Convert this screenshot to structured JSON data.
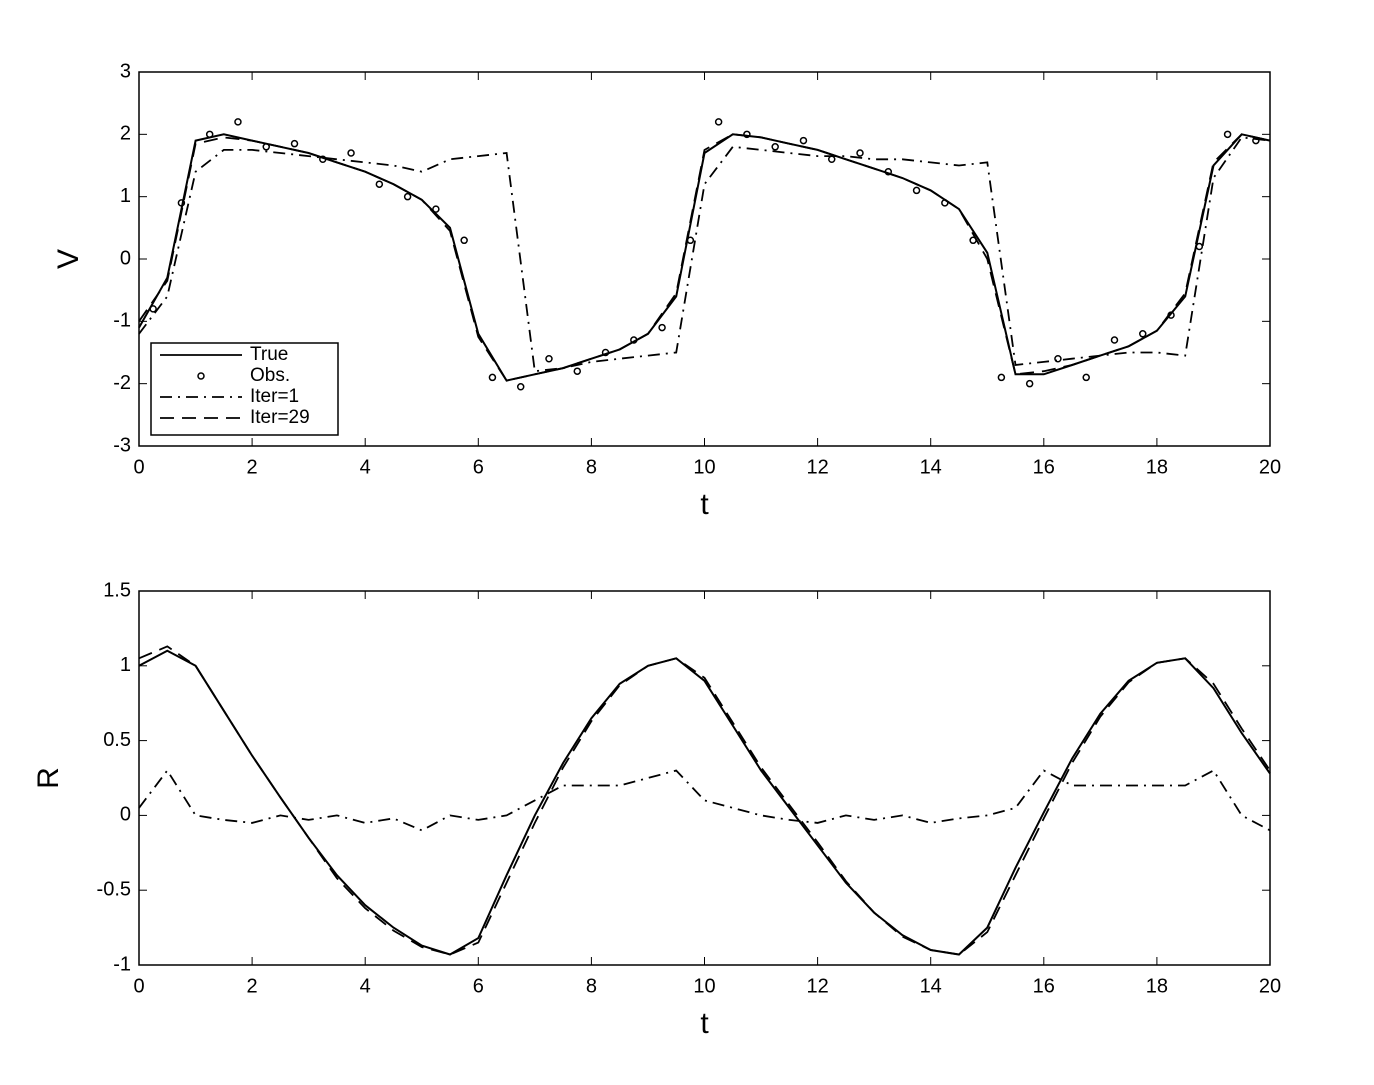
{
  "chart_data": [
    {
      "type": "line",
      "xlabel": "t",
      "ylabel": "V",
      "xlim": [
        0,
        20
      ],
      "ylim": [
        -3,
        3
      ],
      "xticks": [
        0,
        2,
        4,
        6,
        8,
        10,
        12,
        14,
        16,
        18,
        20
      ],
      "yticks": [
        -3,
        -2,
        -1,
        0,
        1,
        2,
        3
      ],
      "legend": "lower left",
      "x": [
        0,
        0.5,
        1,
        1.5,
        2,
        2.5,
        3,
        3.5,
        4,
        4.5,
        5,
        5.5,
        6,
        6.5,
        7,
        7.5,
        8,
        8.5,
        9,
        9.5,
        10,
        10.5,
        11,
        11.5,
        12,
        12.5,
        13,
        13.5,
        14,
        14.5,
        15,
        15.5,
        16,
        16.5,
        17,
        17.5,
        18,
        18.5,
        19,
        19.5,
        20
      ],
      "series": [
        {
          "name": "True",
          "color": "#000000",
          "style": "solid",
          "values": [
            -1.1,
            -0.3,
            1.9,
            2.0,
            1.9,
            1.8,
            1.7,
            1.55,
            1.4,
            1.2,
            0.95,
            0.5,
            -1.2,
            -1.95,
            -1.85,
            -1.75,
            -1.6,
            -1.45,
            -1.2,
            -0.6,
            1.7,
            2.0,
            1.95,
            1.85,
            1.75,
            1.6,
            1.45,
            1.3,
            1.1,
            0.8,
            0.1,
            -1.85,
            -1.85,
            -1.7,
            -1.55,
            -1.4,
            -1.15,
            -0.6,
            1.5,
            2.0,
            1.9
          ]
        },
        {
          "name": "Obs.",
          "color": "#000000",
          "style": "markers",
          "x": [
            0.25,
            0.75,
            1.25,
            1.75,
            2.25,
            2.75,
            3.25,
            3.75,
            4.25,
            4.75,
            5.25,
            5.75,
            6.25,
            6.75,
            7.25,
            7.75,
            8.25,
            8.75,
            9.25,
            9.75,
            10.25,
            10.75,
            11.25,
            11.75,
            12.25,
            12.75,
            13.25,
            13.75,
            14.25,
            14.75,
            15.25,
            15.75,
            16.25,
            16.75,
            17.25,
            17.75,
            18.25,
            18.75,
            19.25,
            19.75
          ],
          "values": [
            -0.8,
            0.9,
            2.0,
            2.2,
            1.8,
            1.85,
            1.6,
            1.7,
            1.2,
            1.0,
            0.8,
            0.3,
            -1.9,
            -2.05,
            -1.6,
            -1.8,
            -1.5,
            -1.3,
            -1.1,
            0.3,
            2.2,
            2.0,
            1.8,
            1.9,
            1.6,
            1.7,
            1.4,
            1.1,
            0.9,
            0.3,
            -1.9,
            -2.0,
            -1.6,
            -1.9,
            -1.3,
            -1.2,
            -0.9,
            0.2,
            2.0,
            1.9
          ]
        },
        {
          "name": "Iter=1",
          "color": "#000000",
          "style": "dashdot",
          "values": [
            -1.2,
            -0.6,
            1.4,
            1.75,
            1.75,
            1.7,
            1.65,
            1.6,
            1.55,
            1.5,
            1.4,
            1.6,
            1.65,
            1.7,
            -1.8,
            -1.75,
            -1.65,
            -1.6,
            -1.55,
            -1.5,
            1.2,
            1.8,
            1.75,
            1.7,
            1.65,
            1.65,
            1.6,
            1.6,
            1.55,
            1.5,
            1.55,
            -1.7,
            -1.65,
            -1.6,
            -1.55,
            -1.5,
            -1.5,
            -1.55,
            1.3,
            1.95,
            1.9
          ]
        },
        {
          "name": "Iter=29",
          "color": "#000000",
          "style": "dashed",
          "values": [
            -1.0,
            -0.35,
            1.85,
            1.95,
            1.9,
            1.8,
            1.7,
            1.55,
            1.4,
            1.2,
            0.95,
            0.45,
            -1.25,
            -1.95,
            -1.85,
            -1.75,
            -1.6,
            -1.45,
            -1.2,
            -0.55,
            1.75,
            2.0,
            1.95,
            1.85,
            1.75,
            1.6,
            1.45,
            1.3,
            1.1,
            0.8,
            0.0,
            -1.85,
            -1.8,
            -1.7,
            -1.55,
            -1.4,
            -1.15,
            -0.55,
            1.55,
            2.0,
            1.9
          ]
        }
      ]
    },
    {
      "type": "line",
      "xlabel": "t",
      "ylabel": "R",
      "xlim": [
        0,
        20
      ],
      "ylim": [
        -1,
        1.5
      ],
      "xticks": [
        0,
        2,
        4,
        6,
        8,
        10,
        12,
        14,
        16,
        18,
        20
      ],
      "yticks": [
        -1,
        -0.5,
        0,
        0.5,
        1,
        1.5
      ],
      "x": [
        0,
        0.5,
        1,
        1.5,
        2,
        2.5,
        3,
        3.5,
        4,
        4.5,
        5,
        5.5,
        6,
        6.5,
        7,
        7.5,
        8,
        8.5,
        9,
        9.5,
        10,
        10.5,
        11,
        11.5,
        12,
        12.5,
        13,
        13.5,
        14,
        14.5,
        15,
        15.5,
        16,
        16.5,
        17,
        17.5,
        18,
        18.5,
        19,
        19.5,
        20
      ],
      "series": [
        {
          "name": "True",
          "color": "#000000",
          "style": "solid",
          "values": [
            1.0,
            1.1,
            1.0,
            0.7,
            0.4,
            0.12,
            -0.15,
            -0.4,
            -0.6,
            -0.75,
            -0.87,
            -0.93,
            -0.82,
            -0.4,
            0.0,
            0.35,
            0.65,
            0.88,
            1.0,
            1.05,
            0.9,
            0.6,
            0.3,
            0.05,
            -0.2,
            -0.45,
            -0.65,
            -0.8,
            -0.9,
            -0.93,
            -0.75,
            -0.35,
            0.02,
            0.38,
            0.68,
            0.9,
            1.02,
            1.05,
            0.85,
            0.55,
            0.28
          ]
        },
        {
          "name": "Iter=1",
          "color": "#000000",
          "style": "dashdot",
          "values": [
            0.05,
            0.3,
            0.0,
            -0.03,
            -0.05,
            0.0,
            -0.03,
            0.0,
            -0.05,
            -0.02,
            -0.1,
            0.0,
            -0.03,
            0.0,
            0.1,
            0.2,
            0.2,
            0.2,
            0.25,
            0.3,
            0.1,
            0.05,
            0.0,
            -0.03,
            -0.05,
            0.0,
            -0.03,
            0.0,
            -0.05,
            -0.02,
            0.0,
            0.05,
            0.3,
            0.2,
            0.2,
            0.2,
            0.2,
            0.2,
            0.3,
            0.0,
            -0.1
          ]
        },
        {
          "name": "Iter=29",
          "color": "#000000",
          "style": "dashed",
          "values": [
            1.05,
            1.13,
            1.0,
            0.7,
            0.4,
            0.12,
            -0.15,
            -0.42,
            -0.62,
            -0.77,
            -0.88,
            -0.93,
            -0.85,
            -0.45,
            -0.05,
            0.32,
            0.63,
            0.87,
            1.0,
            1.05,
            0.92,
            0.62,
            0.32,
            0.07,
            -0.18,
            -0.44,
            -0.65,
            -0.81,
            -0.9,
            -0.93,
            -0.78,
            -0.4,
            -0.02,
            0.35,
            0.66,
            0.89,
            1.02,
            1.05,
            0.88,
            0.58,
            0.3
          ]
        }
      ]
    }
  ]
}
